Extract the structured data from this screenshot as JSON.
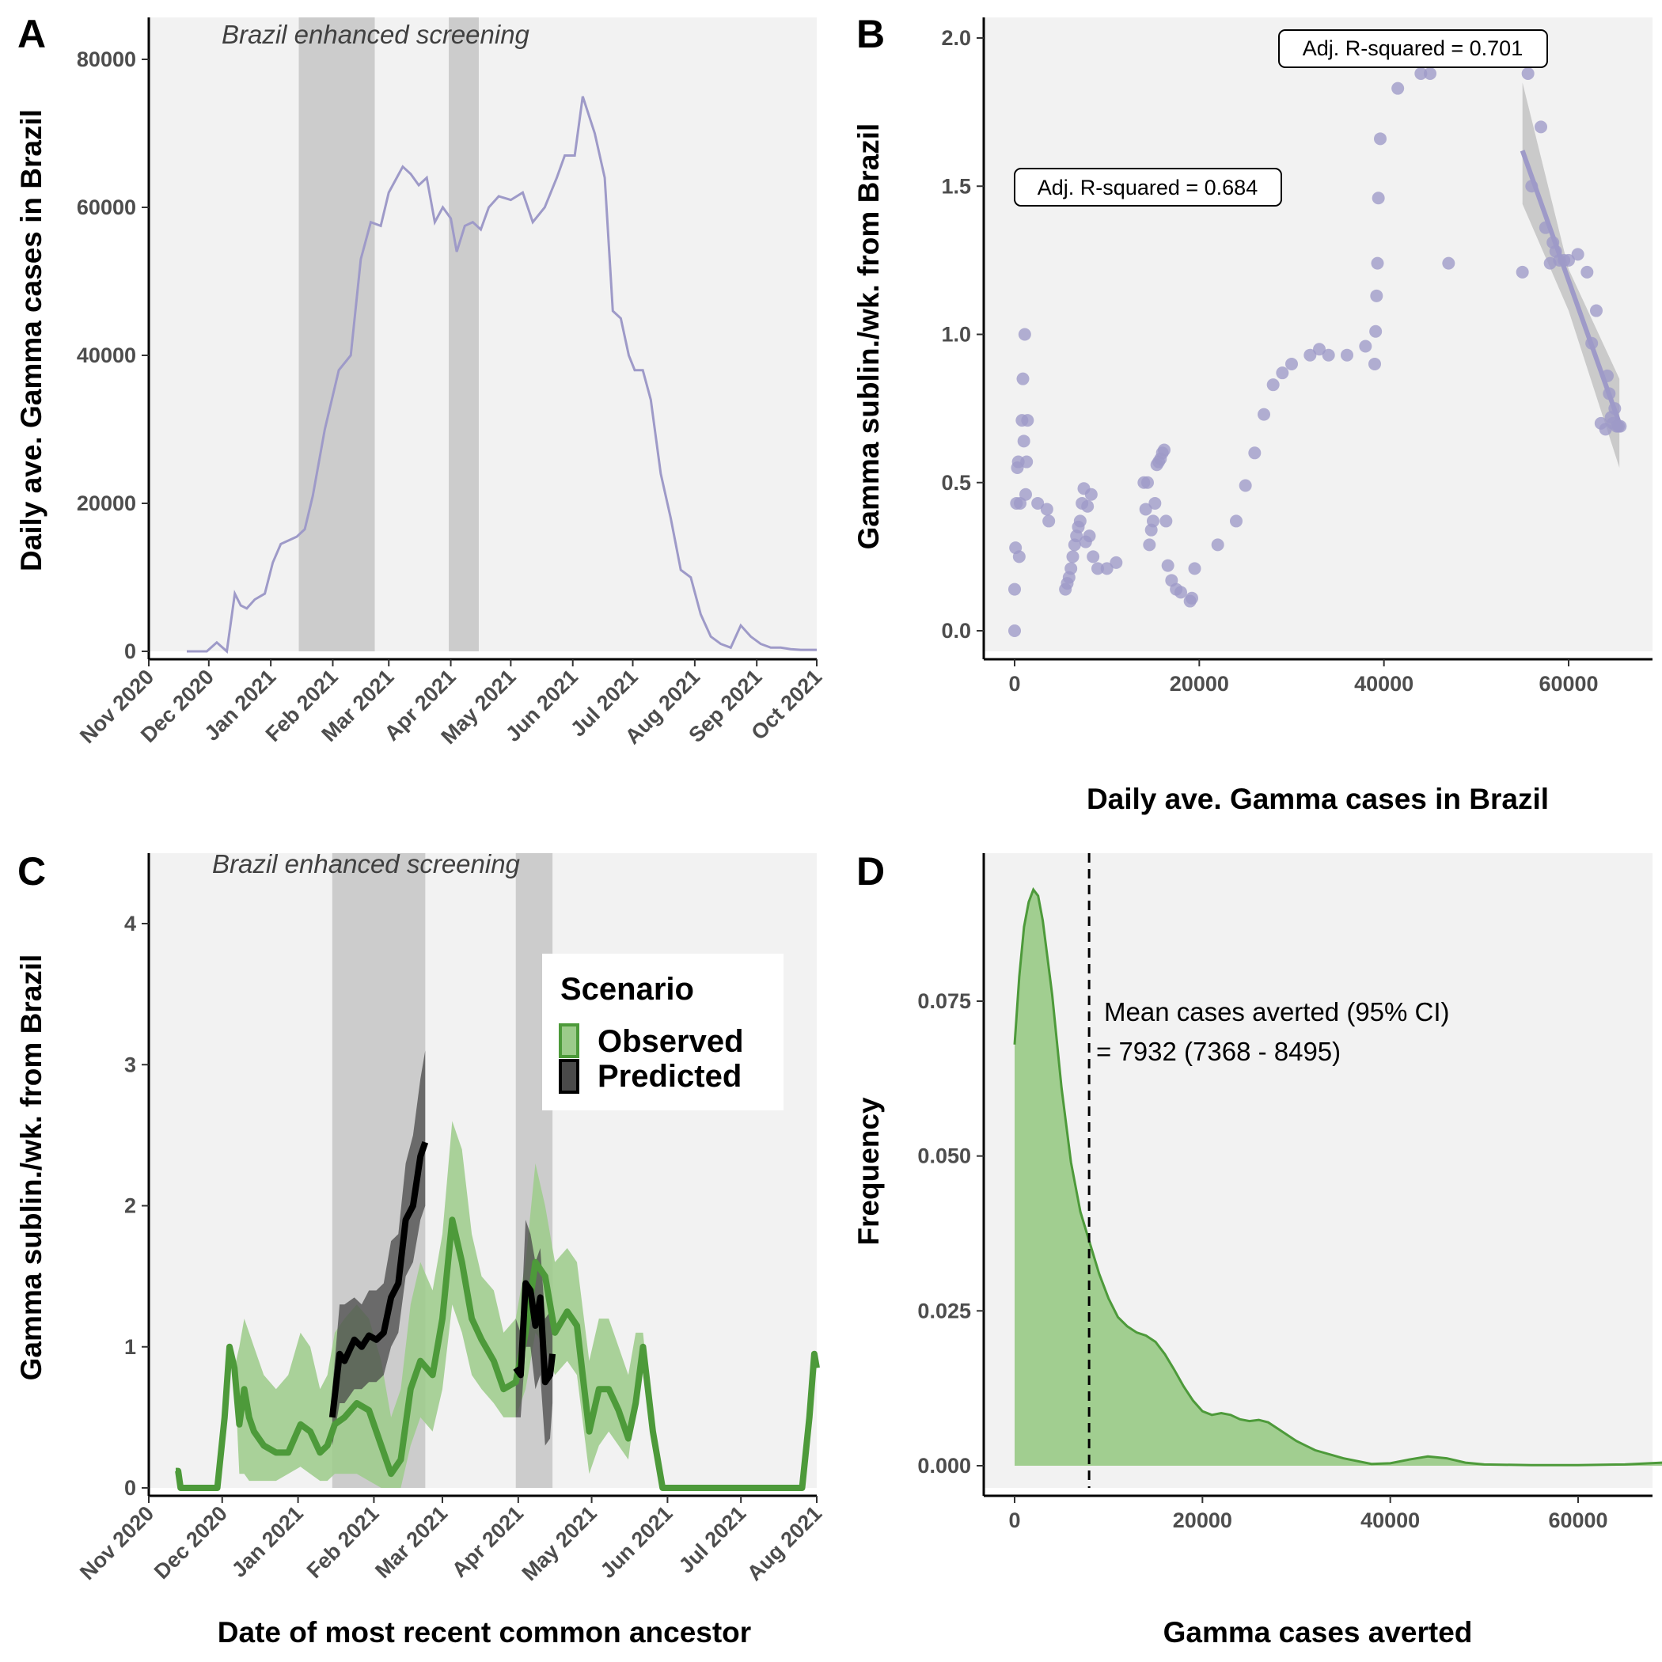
{
  "colors": {
    "panel_bg": "#f2f2f2",
    "shade": "#cccccc",
    "purple": "#9e9ac8",
    "green": "#4d9a3a",
    "green_band": "#9ccb8a",
    "black": "#000000",
    "dark_band": "#4a4a4a"
  },
  "chart_data": [
    {
      "panel": "A",
      "type": "line",
      "ylabel": "Daily ave. Gamma cases in Brazil",
      "xlabel": "",
      "x_ticks": [
        "Nov 2020",
        "Dec 2020",
        "Jan 2021",
        "Feb 2021",
        "Mar 2021",
        "Apr 2021",
        "May 2021",
        "Jun 2021",
        "Jul 2021",
        "Aug 2021",
        "Sep 2021",
        "Oct 2021"
      ],
      "y_ticks": [
        "0",
        "20000",
        "40000",
        "60000",
        "80000"
      ],
      "ylim": [
        0,
        84000
      ],
      "shaded_regions": [
        [
          "2021-01-15",
          "2021-02-22"
        ],
        [
          "2021-03-31",
          "2021-04-15"
        ]
      ],
      "shade_label": "Brazil enhanced screening",
      "grid": false,
      "series": [
        {
          "x": [
            "2020-11-20",
            "2020-11-30",
            "2020-12-05",
            "2020-12-10",
            "2020-12-14",
            "2020-12-17",
            "2020-12-20",
            "2020-12-24",
            "2020-12-29",
            "2021-01-02",
            "2021-01-06",
            "2021-01-10",
            "2021-01-14",
            "2021-01-18",
            "2021-01-22",
            "2021-01-28",
            "2021-02-04",
            "2021-02-10",
            "2021-02-15",
            "2021-02-20",
            "2021-02-25",
            "2021-03-01",
            "2021-03-05",
            "2021-03-08",
            "2021-03-12",
            "2021-03-16",
            "2021-03-20",
            "2021-03-24",
            "2021-03-28",
            "2021-04-01",
            "2021-04-04",
            "2021-04-08",
            "2021-04-12",
            "2021-04-16",
            "2021-04-20",
            "2021-04-25",
            "2021-05-01",
            "2021-05-07",
            "2021-05-12",
            "2021-05-18",
            "2021-05-24",
            "2021-05-28",
            "2021-06-02",
            "2021-06-06",
            "2021-06-12",
            "2021-06-17",
            "2021-06-21",
            "2021-06-25",
            "2021-06-29",
            "2021-07-02",
            "2021-07-06",
            "2021-07-10",
            "2021-07-15",
            "2021-07-20",
            "2021-07-25",
            "2021-07-30",
            "2021-08-04",
            "2021-08-09",
            "2021-08-14",
            "2021-08-19",
            "2021-08-24",
            "2021-08-29",
            "2021-09-03",
            "2021-09-08",
            "2021-09-13",
            "2021-09-18",
            "2021-09-23",
            "2021-09-28",
            "2021-10-01"
          ],
          "y": [
            0,
            0,
            1200,
            0,
            7800,
            6200,
            5800,
            7000,
            7800,
            12000,
            14500,
            15000,
            15500,
            16500,
            21000,
            30000,
            38000,
            40000,
            53000,
            58000,
            57500,
            62000,
            64000,
            65500,
            64500,
            63000,
            64000,
            58000,
            60000,
            58500,
            54000,
            57500,
            58000,
            57000,
            60000,
            61500,
            61000,
            62000,
            58000,
            60000,
            64000,
            67000,
            67000,
            75000,
            70000,
            64000,
            46000,
            45000,
            40000,
            38000,
            38000,
            34000,
            24000,
            18000,
            11000,
            10000,
            5000,
            2000,
            1000,
            500,
            3500,
            2000,
            1000,
            500,
            500,
            300,
            200,
            200,
            200
          ]
        }
      ]
    },
    {
      "panel": "B",
      "type": "scatter",
      "xlabel": "Daily ave. Gamma cases in Brazil",
      "ylabel": "Gamma sublin./wk. from Brazil",
      "x_ticks": [
        "0",
        "20000",
        "40000",
        "60000"
      ],
      "y_ticks": [
        "0.0",
        "0.5",
        "1.0",
        "1.5",
        "2.0"
      ],
      "xlim": [
        -3000,
        69000
      ],
      "ylim": [
        -0.1,
        2.05
      ],
      "annotations": [
        "Adj. R-squared = 0.684",
        "Adj. R-squared = 0.701"
      ],
      "fit_line": {
        "x": [
          55000,
          65500
        ],
        "y": [
          1.62,
          0.7
        ]
      },
      "points": {
        "x": [
          0,
          0,
          100,
          200,
          300,
          400,
          500,
          600,
          800,
          900,
          1000,
          1100,
          1200,
          1300,
          1400,
          2500,
          3500,
          3700,
          5500,
          5700,
          5900,
          6100,
          6300,
          6500,
          6700,
          6900,
          7100,
          7300,
          7500,
          7700,
          7900,
          8100,
          8300,
          8500,
          9000,
          10000,
          11000,
          14000,
          14200,
          14400,
          14600,
          14800,
          15000,
          15200,
          15400,
          15600,
          15800,
          16000,
          16200,
          16400,
          16600,
          17000,
          17500,
          18000,
          19000,
          19200,
          19500,
          22000,
          24000,
          25000,
          26000,
          27000,
          28000,
          29000,
          30000,
          32000,
          33000,
          34000,
          36000,
          38000,
          39000,
          39100,
          39200,
          39300,
          39400,
          39600,
          41500,
          44000,
          45000,
          47000,
          55000,
          55600,
          56000,
          57000,
          57500,
          58000,
          58300,
          58600,
          59000,
          59500,
          60000,
          61000,
          62000,
          62500,
          63000,
          63500,
          64000,
          64200,
          64400,
          64600,
          64800,
          65000,
          65200,
          65400,
          65600
        ],
        "y": [
          0,
          0.14,
          0.28,
          0.43,
          0.55,
          0.57,
          0.25,
          0.43,
          0.71,
          0.85,
          0.64,
          1.0,
          0.46,
          0.57,
          0.71,
          0.43,
          0.41,
          0.37,
          0.14,
          0.16,
          0.18,
          0.21,
          0.25,
          0.29,
          0.32,
          0.35,
          0.37,
          0.43,
          0.48,
          0.3,
          0.42,
          0.32,
          0.46,
          0.25,
          0.21,
          0.21,
          0.23,
          0.5,
          0.41,
          0.5,
          0.29,
          0.34,
          0.37,
          0.43,
          0.56,
          0.57,
          0.58,
          0.6,
          0.61,
          0.37,
          0.22,
          0.17,
          0.14,
          0.13,
          0.1,
          0.11,
          0.21,
          0.29,
          0.37,
          0.49,
          0.6,
          0.73,
          0.83,
          0.87,
          0.9,
          0.93,
          0.95,
          0.93,
          0.93,
          0.96,
          0.9,
          1.01,
          1.13,
          1.24,
          1.46,
          1.66,
          1.83,
          1.88,
          1.88,
          1.24,
          1.21,
          1.88,
          1.5,
          1.7,
          1.36,
          1.24,
          1.31,
          1.28,
          1.25,
          1.25,
          1.25,
          1.27,
          1.21,
          0.97,
          1.08,
          0.7,
          0.68,
          0.86,
          0.8,
          0.72,
          0.7,
          0.75,
          0.69,
          0.69,
          0.69
        ]
      }
    },
    {
      "panel": "C",
      "type": "line",
      "xlabel": "Date of most recent common ancestor",
      "ylabel": "Gamma sublin./wk. from Brazil",
      "x_ticks": [
        "Nov 2020",
        "Dec 2020",
        "Jan 2021",
        "Feb 2021",
        "Mar 2021",
        "Apr 2021",
        "May 2021",
        "Jun 2021",
        "Jul 2021",
        "Aug 2021"
      ],
      "y_ticks": [
        "0",
        "1",
        "2",
        "3",
        "4"
      ],
      "ylim": [
        0,
        4.5
      ],
      "shaded_regions": [
        [
          "2021-01-15",
          "2021-02-22"
        ],
        [
          "2021-03-31",
          "2021-04-15"
        ]
      ],
      "shade_label": "Brazil enhanced screening",
      "legend": {
        "title": "Scenario",
        "position": "top-right",
        "items": [
          "Observed",
          "Predicted"
        ]
      },
      "series": [
        {
          "name": "Observed",
          "x": [
            "2020-11-12",
            "2020-11-13",
            "2020-11-14",
            "2020-11-29",
            "2020-12-02",
            "2020-12-04",
            "2020-12-06",
            "2020-12-08",
            "2020-12-10",
            "2020-12-12",
            "2020-12-14",
            "2020-12-18",
            "2020-12-23",
            "2020-12-28",
            "2021-01-02",
            "2021-01-06",
            "2021-01-10",
            "2021-01-13",
            "2021-01-16",
            "2021-01-20",
            "2021-01-25",
            "2021-01-30",
            "2021-02-04",
            "2021-02-08",
            "2021-02-12",
            "2021-02-16",
            "2021-02-20",
            "2021-02-25",
            "2021-03-01",
            "2021-03-05",
            "2021-03-09",
            "2021-03-13",
            "2021-03-17",
            "2021-03-22",
            "2021-03-26",
            "2021-03-31",
            "2021-04-04",
            "2021-04-08",
            "2021-04-12",
            "2021-04-16",
            "2021-04-21",
            "2021-04-25",
            "2021-04-30",
            "2021-05-04",
            "2021-05-08",
            "2021-05-12",
            "2021-05-16",
            "2021-05-19",
            "2021-05-22",
            "2021-05-26",
            "2021-05-30",
            "2021-06-10",
            "2021-07-20",
            "2021-07-26",
            "2021-07-29",
            "2021-07-31",
            "2021-08-01"
          ],
          "y": [
            0.12,
            0.12,
            0,
            0,
            0.5,
            1.0,
            0.85,
            0.45,
            0.7,
            0.5,
            0.4,
            0.3,
            0.25,
            0.25,
            0.45,
            0.4,
            0.25,
            0.3,
            0.45,
            0.5,
            0.6,
            0.55,
            0.3,
            0.1,
            0.2,
            0.7,
            0.9,
            0.8,
            1.2,
            1.9,
            1.6,
            1.2,
            1.05,
            0.9,
            0.7,
            0.75,
            1.1,
            1.6,
            1.5,
            1.1,
            1.25,
            1.15,
            0.4,
            0.7,
            0.7,
            0.55,
            0.35,
            0.6,
            1.0,
            0.4,
            0,
            0,
            0,
            0,
            0.5,
            0.95,
            0.85
          ],
          "lower": [
            0.12,
            0.12,
            0,
            0,
            0.5,
            1.0,
            0.85,
            0.1,
            0.1,
            0.05,
            0.05,
            0.05,
            0.05,
            0.1,
            0.15,
            0.1,
            0.05,
            0.05,
            0.1,
            0.1,
            0.1,
            0.05,
            0,
            0,
            0,
            0.3,
            0.5,
            0.4,
            0.7,
            1.3,
            1.1,
            0.8,
            0.7,
            0.6,
            0.5,
            0.5,
            0.7,
            1.1,
            1.0,
            0.8,
            0.9,
            0.8,
            0.1,
            0.3,
            0.4,
            0.3,
            0.2,
            0.6,
            1.0,
            0.4,
            0,
            0,
            0,
            0,
            0.5,
            0.95,
            0.85
          ],
          "upper": [
            0.12,
            0.12,
            0,
            0,
            0.5,
            1.0,
            0.85,
            1.0,
            1.2,
            1.1,
            1.0,
            0.8,
            0.7,
            0.8,
            1.1,
            1.0,
            0.7,
            0.8,
            1.1,
            1.2,
            1.3,
            1.2,
            0.9,
            0.5,
            0.7,
            1.3,
            1.6,
            1.4,
            1.8,
            2.6,
            2.4,
            1.8,
            1.5,
            1.4,
            1.1,
            1.2,
            1.6,
            2.3,
            2.0,
            1.6,
            1.7,
            1.6,
            0.9,
            1.2,
            1.2,
            1.0,
            0.8,
            1.1,
            1.1,
            0.4,
            0,
            0,
            0,
            0,
            0.5,
            0.95,
            0.85
          ]
        },
        {
          "name": "Predicted",
          "x": [
            "2021-01-15",
            "2021-01-18",
            "2021-01-20",
            "2021-01-24",
            "2021-01-27",
            "2021-01-30",
            "2021-02-02",
            "2021-02-05",
            "2021-02-08",
            "2021-02-11",
            "2021-02-14",
            "2021-02-17",
            "2021-02-20",
            "2021-02-22"
          ],
          "y": [
            0.5,
            0.95,
            0.9,
            1.05,
            1.0,
            1.08,
            1.05,
            1.1,
            1.35,
            1.45,
            1.9,
            2.0,
            2.35,
            2.45
          ],
          "lower": [
            0.3,
            0.6,
            0.6,
            0.7,
            0.7,
            0.75,
            0.75,
            0.8,
            1.0,
            1.1,
            1.5,
            1.6,
            1.9,
            2.0
          ],
          "upper": [
            0.7,
            1.3,
            1.3,
            1.35,
            1.3,
            1.4,
            1.4,
            1.45,
            1.75,
            1.8,
            2.3,
            2.5,
            2.9,
            3.1
          ]
        },
        {
          "name": "Predicted",
          "x": [
            "2021-03-31",
            "2021-04-02",
            "2021-04-04",
            "2021-04-06",
            "2021-04-08",
            "2021-04-10",
            "2021-04-12",
            "2021-04-14",
            "2021-04-15"
          ],
          "y": [
            0.85,
            0.8,
            1.45,
            1.4,
            1.15,
            1.35,
            0.75,
            0.8,
            0.95
          ],
          "lower": [
            0.5,
            0.5,
            1.0,
            1.0,
            0.7,
            0.8,
            0.3,
            0.35,
            0.6
          ],
          "upper": [
            1.2,
            1.1,
            1.9,
            1.8,
            1.6,
            1.7,
            1.2,
            1.25,
            1.3
          ]
        }
      ]
    },
    {
      "panel": "D",
      "type": "area",
      "xlabel": "Gamma cases averted",
      "ylabel": "Frequency",
      "x_ticks": [
        "0",
        "20000",
        "40000",
        "60000"
      ],
      "y_ticks": [
        "0.000",
        "0.025",
        "0.050",
        "0.075"
      ],
      "xlim": [
        -3000,
        72000
      ],
      "ylim": [
        -0.004,
        0.098
      ],
      "mean_line": 7932,
      "annotation_lines": [
        "Mean cases averted (95% CI)",
        "= 7932 (7368 - 8495)"
      ],
      "x": [
        0,
        500,
        1000,
        1500,
        2000,
        2500,
        3000,
        4000,
        5000,
        6000,
        7000,
        8000,
        9000,
        10000,
        11000,
        12000,
        13000,
        14000,
        15000,
        16000,
        17000,
        18000,
        19000,
        20000,
        21000,
        22000,
        23000,
        24000,
        25000,
        26000,
        27000,
        28000,
        30000,
        32000,
        35000,
        38000,
        40000,
        42000,
        44000,
        46000,
        48000,
        50000,
        55000,
        60000,
        65000,
        69000
      ],
      "y": [
        0.068,
        0.079,
        0.087,
        0.091,
        0.093,
        0.092,
        0.088,
        0.076,
        0.061,
        0.049,
        0.041,
        0.036,
        0.031,
        0.027,
        0.024,
        0.0225,
        0.0215,
        0.021,
        0.02,
        0.018,
        0.0155,
        0.0128,
        0.0105,
        0.0088,
        0.0082,
        0.0085,
        0.0082,
        0.0075,
        0.0072,
        0.0074,
        0.007,
        0.006,
        0.004,
        0.0025,
        0.0012,
        0.0003,
        0.0004,
        0.001,
        0.0015,
        0.0012,
        0.0005,
        0.0002,
        0.0001,
        0.0001,
        0.0002,
        0.0005
      ]
    }
  ]
}
